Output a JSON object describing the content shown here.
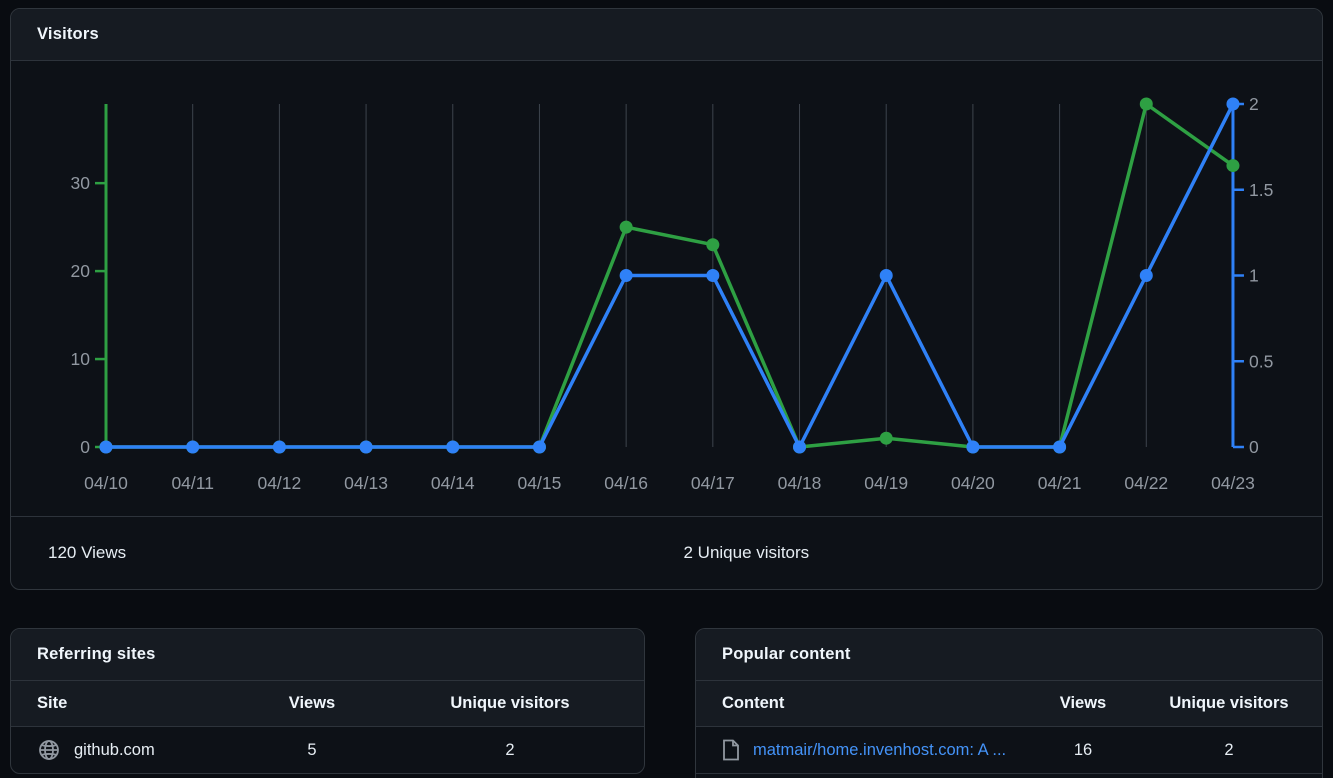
{
  "colors": {
    "views_green": "#2ea043",
    "unique_blue": "#2f81f7",
    "gridline": "#3d444d",
    "axis_label": "#9198a1",
    "link": "#4493f8",
    "card_header_bg": "#161b22",
    "card_bg": "#0d1117",
    "border": "#30363d"
  },
  "visitors": {
    "title": "Visitors",
    "views_total": "120 Views",
    "unique_total": "2 Unique visitors"
  },
  "chart_data": {
    "type": "line",
    "title": "Visitors",
    "categories": [
      "04/10",
      "04/11",
      "04/12",
      "04/13",
      "04/14",
      "04/15",
      "04/16",
      "04/17",
      "04/18",
      "04/19",
      "04/20",
      "04/21",
      "04/22",
      "04/23"
    ],
    "series": [
      {
        "name": "Views",
        "axis": "left",
        "color": "#2ea043",
        "values": [
          0,
          0,
          0,
          0,
          0,
          0,
          25,
          23,
          0,
          1,
          0,
          0,
          39,
          32
        ]
      },
      {
        "name": "Unique visitors",
        "axis": "right",
        "color": "#2f81f7",
        "values": [
          0,
          0,
          0,
          0,
          0,
          0,
          1,
          1,
          0,
          1,
          0,
          0,
          1,
          2
        ]
      }
    ],
    "left_axis": {
      "ticks": [
        0,
        10,
        20,
        30
      ],
      "max": 39,
      "color": "#2ea043",
      "at_category": "04/10"
    },
    "right_axis": {
      "ticks": [
        0,
        0.5,
        1,
        1.5,
        2
      ],
      "max": 2,
      "color": "#2f81f7",
      "at_category": "04/23"
    },
    "grid": "vertical-only",
    "legend": "none"
  },
  "referring_sites": {
    "title": "Referring sites",
    "columns": [
      "Site",
      "Views",
      "Unique visitors"
    ],
    "rows": [
      {
        "icon": "globe-icon",
        "site": "github.com",
        "views": "5",
        "unique": "2"
      }
    ]
  },
  "popular_content": {
    "title": "Popular content",
    "columns": [
      "Content",
      "Views",
      "Unique visitors"
    ],
    "rows": [
      {
        "icon": "file-icon",
        "content": "matmair/home.invenhost.com: A ...",
        "views": "16",
        "unique": "2"
      }
    ]
  }
}
